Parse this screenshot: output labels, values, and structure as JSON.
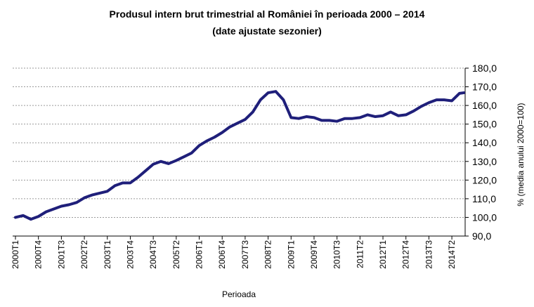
{
  "chart_data": {
    "type": "line",
    "title": "Produsul intern brut trimestrial al României în perioada 2000 – 2014",
    "subtitle": "(date ajustate sezonier)",
    "xlabel": "Perioada",
    "ylabel": "% (media anului 2000=100)",
    "ylim": [
      90,
      180
    ],
    "y_ticks": [
      "180,0",
      "170,0",
      "160,0",
      "150,0",
      "140,0",
      "130,0",
      "120,0",
      "110,0",
      "100,0",
      "90,0"
    ],
    "y_axis_side": "right",
    "grid": true,
    "legend": "none",
    "x_tick_labels": [
      "2000T1",
      "2000T4",
      "2001T3",
      "2002T2",
      "2003T1",
      "2003T4",
      "2004T3",
      "2005T2",
      "2006T1",
      "2006T4",
      "2007T3",
      "2008T2",
      "2009T1",
      "2009T4",
      "2010T3",
      "2011T2",
      "2012T1",
      "2012T4",
      "2013T3",
      "2014T2"
    ],
    "x_tick_every": 3,
    "line_color": "#1f1f7a",
    "series": [
      {
        "x": [
          "2000T1",
          "2000T2",
          "2000T3",
          "2000T4",
          "2001T1",
          "2001T2",
          "2001T3",
          "2001T4",
          "2002T1",
          "2002T2",
          "2002T3",
          "2002T4",
          "2003T1",
          "2003T2",
          "2003T3",
          "2003T4",
          "2004T1",
          "2004T2",
          "2004T3",
          "2004T4",
          "2005T1",
          "2005T2",
          "2005T3",
          "2005T4",
          "2006T1",
          "2006T2",
          "2006T3",
          "2006T4",
          "2007T1",
          "2007T2",
          "2007T3",
          "2007T4",
          "2008T1",
          "2008T2",
          "2008T3",
          "2008T4",
          "2009T1",
          "2009T2",
          "2009T3",
          "2009T4",
          "2010T1",
          "2010T2",
          "2010T3",
          "2010T4",
          "2011T1",
          "2011T2",
          "2011T3",
          "2011T4",
          "2012T1",
          "2012T2",
          "2012T3",
          "2012T4",
          "2013T1",
          "2013T2",
          "2013T3",
          "2013T4",
          "2014T1",
          "2014T2",
          "2014T3"
        ],
        "values": [
          100.0,
          101.0,
          99.0,
          100.5,
          103.0,
          104.5,
          106.0,
          106.8,
          108.0,
          110.5,
          112.0,
          113.0,
          114.0,
          117.0,
          118.5,
          118.5,
          121.5,
          125.0,
          128.5,
          130.0,
          128.8,
          130.5,
          132.5,
          134.5,
          138.5,
          141.0,
          143.0,
          145.5,
          148.5,
          150.5,
          152.5,
          156.5,
          163.0,
          166.8,
          167.5,
          163.0,
          153.5,
          153.0,
          154.0,
          153.5,
          152.0,
          152.0,
          151.5,
          153.0,
          153.0,
          153.5,
          155.0,
          154.0,
          154.5,
          156.5,
          154.5,
          155.0,
          157.0,
          159.5,
          161.5,
          163.0,
          163.0,
          162.5,
          166.5
        ]
      }
    ],
    "last_point_x_extra": 166.8
  }
}
